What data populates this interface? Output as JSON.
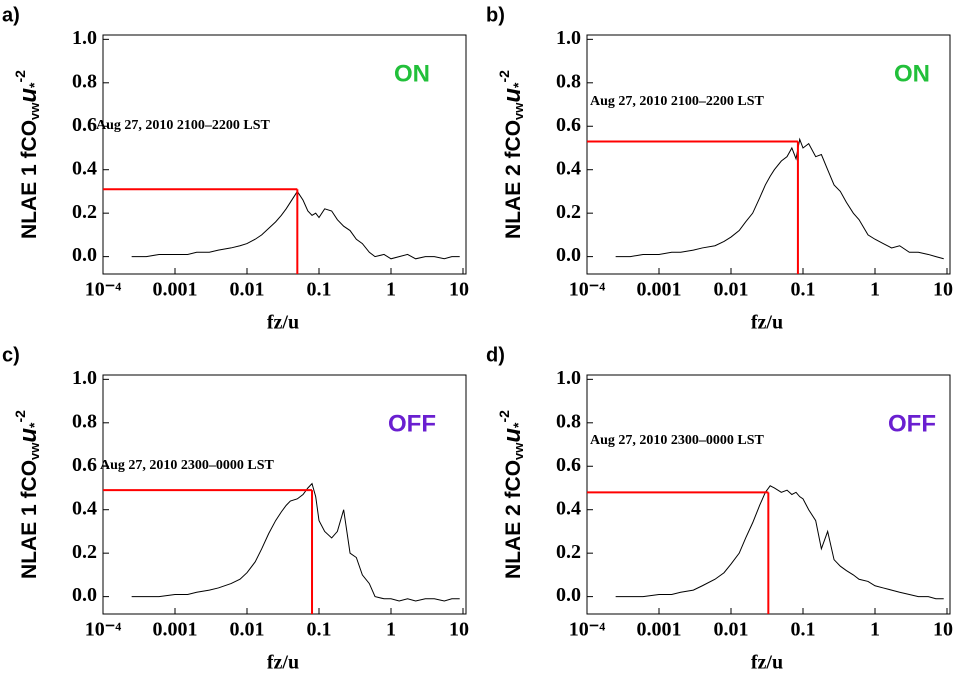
{
  "chart_data": [
    {
      "type": "line",
      "label": "a)",
      "status": "ON",
      "status_color": "#22c03a",
      "annotation": "Aug 27, 2010 2100–2200 LST",
      "ylabel": [
        "NLAE 1 fCO",
        "vw",
        "u",
        "*",
        "-2"
      ],
      "xlabel": "fz/u",
      "xscale": "log",
      "xlim": [
        0.0001,
        10
      ],
      "ylim": [
        -0.08,
        1.02
      ],
      "xticks": [
        {
          "value": 0.0001,
          "label": "10⁻⁴"
        },
        0.001,
        0.01,
        0.1,
        1,
        10
      ],
      "yticks": [
        {
          "value": 0,
          "label": "0.0"
        },
        0.2,
        0.4,
        0.6,
        0.8,
        {
          "value": 1,
          "label": "1.0"
        }
      ],
      "peak": {
        "x": 0.05,
        "y": 0.31,
        "color": "#ff0000"
      },
      "x": [
        0.00025,
        0.0004,
        0.0006,
        0.001,
        0.0015,
        0.002,
        0.003,
        0.004,
        0.006,
        0.008,
        0.01,
        0.013,
        0.016,
        0.02,
        0.025,
        0.03,
        0.035,
        0.04,
        0.05,
        0.06,
        0.07,
        0.08,
        0.09,
        0.1,
        0.12,
        0.15,
        0.18,
        0.22,
        0.27,
        0.33,
        0.4,
        0.5,
        0.6,
        0.8,
        1,
        1.3,
        1.7,
        2.2,
        3,
        4,
        5.5,
        7,
        9
      ],
      "series": [
        {
          "color": "#000000",
          "values": [
            0.0,
            0.0,
            0.01,
            0.01,
            0.01,
            0.02,
            0.02,
            0.03,
            0.04,
            0.05,
            0.06,
            0.08,
            0.1,
            0.13,
            0.16,
            0.19,
            0.22,
            0.25,
            0.3,
            0.26,
            0.21,
            0.19,
            0.2,
            0.18,
            0.22,
            0.21,
            0.17,
            0.14,
            0.12,
            0.08,
            0.06,
            0.02,
            0.0,
            0.01,
            -0.01,
            0.0,
            0.01,
            -0.01,
            0.0,
            0.0,
            -0.01,
            0.0,
            0.0
          ]
        }
      ]
    },
    {
      "type": "line",
      "label": "b)",
      "status": "ON",
      "status_color": "#22c03a",
      "annotation": "Aug 27, 2010 2100–2200 LST",
      "ylabel": [
        "NLAE 2 fCO",
        "vw",
        "u",
        "*",
        "-2"
      ],
      "xlabel": "fz/u",
      "xscale": "log",
      "xlim": [
        0.0001,
        10
      ],
      "ylim": [
        -0.08,
        1.02
      ],
      "xticks": [
        {
          "value": 0.0001,
          "label": "10⁻⁴"
        },
        0.001,
        0.01,
        0.1,
        1,
        10
      ],
      "yticks": [
        {
          "value": 0,
          "label": "0.0"
        },
        0.2,
        0.4,
        0.6,
        0.8,
        {
          "value": 1,
          "label": "1.0"
        }
      ],
      "peak": {
        "x": 0.085,
        "y": 0.53,
        "color": "#ff0000"
      },
      "x": [
        0.00025,
        0.0004,
        0.0006,
        0.001,
        0.0015,
        0.002,
        0.003,
        0.004,
        0.006,
        0.008,
        0.01,
        0.013,
        0.016,
        0.02,
        0.025,
        0.03,
        0.035,
        0.04,
        0.05,
        0.06,
        0.07,
        0.08,
        0.09,
        0.1,
        0.12,
        0.15,
        0.18,
        0.22,
        0.27,
        0.33,
        0.4,
        0.5,
        0.6,
        0.8,
        1,
        1.3,
        1.7,
        2.2,
        3,
        4,
        5.5,
        7,
        9
      ],
      "series": [
        {
          "color": "#000000",
          "values": [
            0.0,
            0.0,
            0.01,
            0.01,
            0.02,
            0.02,
            0.03,
            0.04,
            0.05,
            0.07,
            0.09,
            0.12,
            0.16,
            0.2,
            0.27,
            0.33,
            0.37,
            0.4,
            0.44,
            0.46,
            0.5,
            0.45,
            0.54,
            0.5,
            0.52,
            0.46,
            0.47,
            0.4,
            0.33,
            0.3,
            0.25,
            0.2,
            0.17,
            0.1,
            0.08,
            0.06,
            0.04,
            0.05,
            0.02,
            0.02,
            0.01,
            0.0,
            -0.01
          ]
        }
      ]
    },
    {
      "type": "line",
      "label": "c)",
      "status": "OFF",
      "status_color": "#6a1fd0",
      "annotation": "Aug 27, 2010 2300–0000 LST",
      "ylabel": [
        "NLAE 1 fCO",
        "vw",
        "u",
        "*",
        "-2"
      ],
      "xlabel": "fz/u",
      "xscale": "log",
      "xlim": [
        0.0001,
        10
      ],
      "ylim": [
        -0.08,
        1.02
      ],
      "xticks": [
        {
          "value": 0.0001,
          "label": "10⁻⁴"
        },
        0.001,
        0.01,
        0.1,
        1,
        10
      ],
      "yticks": [
        {
          "value": 0,
          "label": "0.0"
        },
        0.2,
        0.4,
        0.6,
        0.8,
        {
          "value": 1,
          "label": "1.0"
        }
      ],
      "peak": {
        "x": 0.08,
        "y": 0.49,
        "color": "#ff0000"
      },
      "x": [
        0.00025,
        0.0004,
        0.0006,
        0.001,
        0.0015,
        0.002,
        0.003,
        0.004,
        0.006,
        0.008,
        0.01,
        0.013,
        0.016,
        0.02,
        0.025,
        0.03,
        0.035,
        0.04,
        0.05,
        0.06,
        0.07,
        0.08,
        0.09,
        0.1,
        0.12,
        0.15,
        0.18,
        0.22,
        0.27,
        0.33,
        0.4,
        0.5,
        0.6,
        0.8,
        1,
        1.3,
        1.7,
        2.2,
        3,
        4,
        5.5,
        7,
        9
      ],
      "series": [
        {
          "color": "#000000",
          "values": [
            0.0,
            0.0,
            0.0,
            0.01,
            0.01,
            0.02,
            0.03,
            0.04,
            0.06,
            0.08,
            0.11,
            0.16,
            0.22,
            0.29,
            0.35,
            0.39,
            0.42,
            0.44,
            0.45,
            0.47,
            0.5,
            0.52,
            0.46,
            0.35,
            0.3,
            0.27,
            0.3,
            0.4,
            0.2,
            0.18,
            0.1,
            0.06,
            0.0,
            -0.01,
            -0.01,
            -0.02,
            -0.01,
            -0.02,
            -0.01,
            -0.01,
            -0.02,
            -0.01,
            -0.01
          ]
        }
      ]
    },
    {
      "type": "line",
      "label": "d)",
      "status": "OFF",
      "status_color": "#6a1fd0",
      "annotation": "Aug 27, 2010 2300–0000 LST",
      "ylabel": [
        "NLAE 2 fCO",
        "vw",
        "u",
        "*",
        "-2"
      ],
      "xlabel": "fz/u",
      "xscale": "log",
      "xlim": [
        0.0001,
        10
      ],
      "ylim": [
        -0.08,
        1.02
      ],
      "xticks": [
        {
          "value": 0.0001,
          "label": "10⁻⁴"
        },
        0.001,
        0.01,
        0.1,
        1,
        10
      ],
      "yticks": [
        {
          "value": 0,
          "label": "0.0"
        },
        0.2,
        0.4,
        0.6,
        0.8,
        {
          "value": 1,
          "label": "1.0"
        }
      ],
      "peak": {
        "x": 0.033,
        "y": 0.48,
        "color": "#ff0000"
      },
      "x": [
        0.00025,
        0.0004,
        0.0006,
        0.001,
        0.0015,
        0.002,
        0.003,
        0.004,
        0.006,
        0.008,
        0.01,
        0.013,
        0.016,
        0.02,
        0.025,
        0.03,
        0.035,
        0.04,
        0.05,
        0.06,
        0.07,
        0.08,
        0.09,
        0.1,
        0.12,
        0.15,
        0.18,
        0.22,
        0.27,
        0.33,
        0.4,
        0.5,
        0.6,
        0.8,
        1,
        1.3,
        1.7,
        2.2,
        3,
        4,
        5.5,
        7,
        9
      ],
      "series": [
        {
          "color": "#000000",
          "values": [
            0.0,
            0.0,
            0.0,
            0.01,
            0.01,
            0.02,
            0.03,
            0.05,
            0.08,
            0.11,
            0.15,
            0.2,
            0.27,
            0.34,
            0.42,
            0.48,
            0.51,
            0.5,
            0.48,
            0.49,
            0.47,
            0.48,
            0.46,
            0.45,
            0.4,
            0.35,
            0.22,
            0.3,
            0.17,
            0.14,
            0.12,
            0.1,
            0.08,
            0.07,
            0.05,
            0.04,
            0.03,
            0.02,
            0.01,
            0.0,
            0.0,
            -0.01,
            -0.01
          ]
        }
      ]
    }
  ]
}
